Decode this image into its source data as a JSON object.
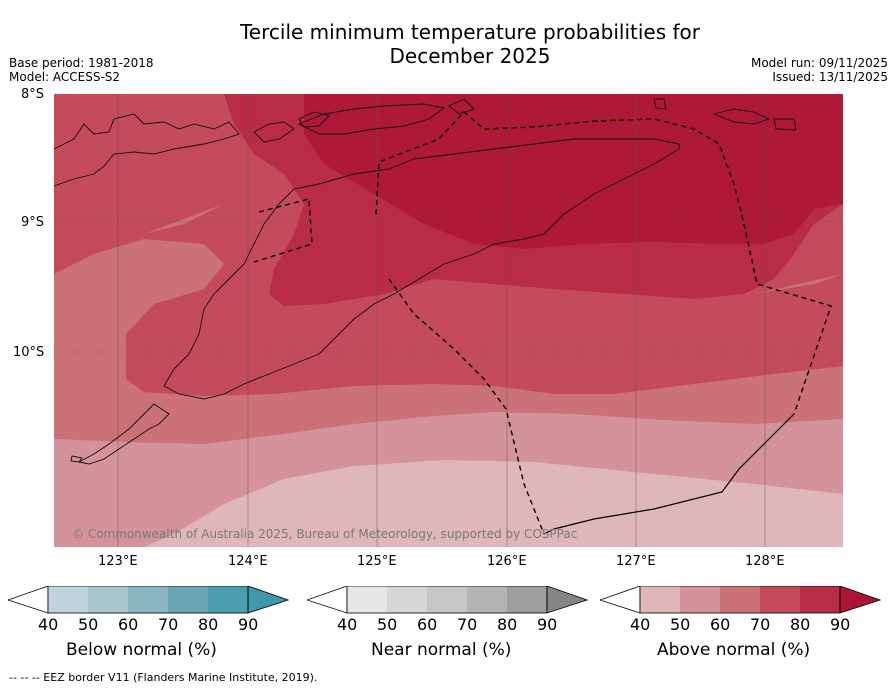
{
  "title_line1": "Tercile minimum temperature probabilities for",
  "title_line2": "December 2025",
  "base_period": "Base period: 1981-2018",
  "model": "Model: ACCESS-S2",
  "model_run": "Model run: 09/11/2025",
  "issued": "Issued: 13/11/2025",
  "lat_labels": [
    "8°S",
    "9°S",
    "10°S"
  ],
  "lon_labels": [
    "123°E",
    "124°E",
    "125°E",
    "126°E",
    "127°E",
    "128°E"
  ],
  "copyright": "© Commonwealth of Australia 2025, Bureau of Meteorology, supported by COSPPac",
  "colorbars": [
    {
      "label": "Below normal (%)",
      "ticks": [
        "40",
        "50",
        "60",
        "70",
        "80",
        "90"
      ],
      "colors": [
        "#bfd4da",
        "#a7c7cc",
        "#8ab7c0",
        "#6aa7b4",
        "#4a9eb0"
      ],
      "over_color": "#3f98ab"
    },
    {
      "label": "Near normal (%)",
      "ticks": [
        "40",
        "50",
        "60",
        "70",
        "80",
        "90"
      ],
      "colors": [
        "#e6e6e6",
        "#d6d6d6",
        "#c6c6c6",
        "#b3b3b3",
        "#9e9e9e"
      ],
      "over_color": "#858585"
    },
    {
      "label": "Above normal (%)",
      "ticks": [
        "40",
        "50",
        "60",
        "70",
        "80",
        "90"
      ],
      "colors": [
        "#dfb7bb",
        "#d4929a",
        "#cb7279",
        "#c34b5c",
        "#b92c47"
      ],
      "over_color": "#ab1636"
    }
  ],
  "footer": "--  --  -- EEZ border V11 (Flanders Marine Institute, 2019).",
  "map_colors": {
    "above_40": "#dfb7bb",
    "above_50": "#d4929a",
    "above_60": "#cb7279",
    "above_70": "#c34b5c",
    "above_80": "#b92c47",
    "above_90": "#ab1636"
  }
}
